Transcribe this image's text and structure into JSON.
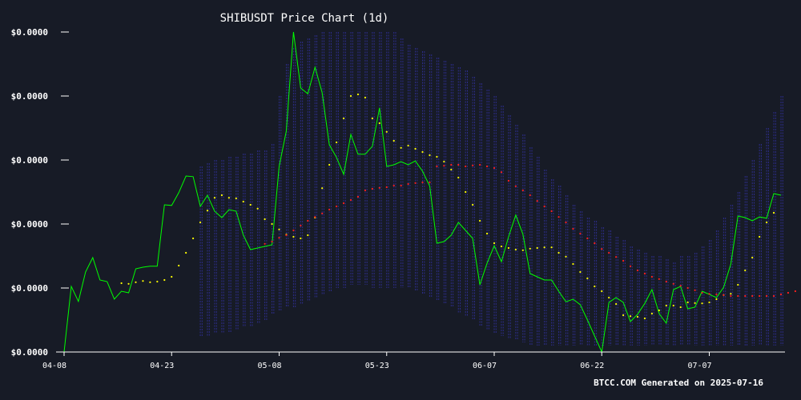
{
  "chart_data": {
    "type": "line",
    "title": "SHIBUSDT Price Chart (1d)",
    "xlabel": "",
    "ylabel": "",
    "x_tick_labels": [
      "04-08",
      "04-23",
      "05-08",
      "05-23",
      "06-07",
      "06-22",
      "07-07"
    ],
    "x_tick_index": [
      0,
      15,
      30,
      45,
      60,
      75,
      90
    ],
    "y_tick_labels": [
      "$0.0000",
      "$0.0000",
      "$0.0000",
      "$0.0000",
      "$0.0000",
      "$0.0000"
    ],
    "ylim": [
      0,
      1
    ],
    "grid": false,
    "legend": "none",
    "series": [
      {
        "kind": "line",
        "color": "#00ff00",
        "values": [
          0.0,
          0.205,
          0.158,
          0.25,
          0.295,
          0.225,
          0.22,
          0.165,
          0.19,
          0.185,
          0.26,
          0.265,
          0.268,
          0.268,
          0.46,
          0.458,
          0.498,
          0.55,
          0.548,
          0.455,
          0.49,
          0.44,
          0.42,
          0.445,
          0.44,
          0.365,
          0.32,
          0.325,
          0.33,
          0.335,
          0.58,
          0.69,
          1.0,
          0.825,
          0.807,
          0.89,
          0.81,
          0.648,
          0.608,
          0.555,
          0.68,
          0.618,
          0.618,
          0.643,
          0.763,
          0.58,
          0.585,
          0.595,
          0.585,
          0.597,
          0.565,
          0.518,
          0.34,
          0.345,
          0.365,
          0.405,
          0.38,
          0.355,
          0.21,
          0.277,
          0.332,
          0.282,
          0.36,
          0.428,
          0.368,
          0.245,
          0.235,
          0.225,
          0.225,
          0.19,
          0.157,
          0.165,
          0.148,
          0.1,
          0.05,
          0.0,
          0.155,
          0.17,
          0.155,
          0.095,
          0.118,
          0.152,
          0.195,
          0.12,
          0.09,
          0.195,
          0.205,
          0.135,
          0.14,
          0.19,
          0.18,
          0.17,
          0.202,
          0.275,
          0.425,
          0.42,
          0.41,
          0.422,
          0.418,
          0.495,
          0.49
        ]
      },
      {
        "kind": "dotted",
        "color": "#ffff00",
        "start_index": 8,
        "values": [
          0.215,
          0.213,
          0.218,
          0.222,
          0.218,
          0.22,
          0.225,
          0.235,
          0.27,
          0.31,
          0.355,
          0.405,
          0.442,
          0.482,
          0.49,
          0.482,
          0.48,
          0.47,
          0.46,
          0.448,
          0.415,
          0.4,
          0.383,
          0.367,
          0.36,
          0.355,
          0.365,
          0.42,
          0.512,
          0.585,
          0.655,
          0.73,
          0.8,
          0.805,
          0.795,
          0.73,
          0.715,
          0.688,
          0.66,
          0.638,
          0.645,
          0.635,
          0.625,
          0.615,
          0.61,
          0.595,
          0.57,
          0.545,
          0.5,
          0.46,
          0.41,
          0.37,
          0.34,
          0.33,
          0.325,
          0.32,
          0.318,
          0.323,
          0.325,
          0.327,
          0.327,
          0.31,
          0.298,
          0.275,
          0.25,
          0.23,
          0.205,
          0.19,
          0.17,
          0.15,
          0.115,
          0.112,
          0.11,
          0.105,
          0.12,
          0.13,
          0.145,
          0.145,
          0.14,
          0.155,
          0.153,
          0.152,
          0.155,
          0.165,
          0.178,
          0.182,
          0.21,
          0.255,
          0.295,
          0.36,
          0.405,
          0.435
        ]
      },
      {
        "kind": "dotted",
        "color": "#ff2020",
        "start_index": 28,
        "values": [
          0.338,
          0.345,
          0.357,
          0.365,
          0.38,
          0.395,
          0.41,
          0.422,
          0.433,
          0.445,
          0.455,
          0.465,
          0.475,
          0.485,
          0.505,
          0.51,
          0.513,
          0.515,
          0.52,
          0.52,
          0.525,
          0.528,
          0.53,
          0.53,
          0.58,
          0.582,
          0.585,
          0.585,
          0.58,
          0.583,
          0.585,
          0.58,
          0.575,
          0.562,
          0.535,
          0.518,
          0.505,
          0.49,
          0.472,
          0.455,
          0.44,
          0.422,
          0.405,
          0.385,
          0.37,
          0.355,
          0.34,
          0.322,
          0.31,
          0.297,
          0.285,
          0.268,
          0.255,
          0.245,
          0.235,
          0.228,
          0.22,
          0.213,
          0.207,
          0.2,
          0.193,
          0.185,
          0.182,
          0.18,
          0.178,
          0.175,
          0.175,
          0.175,
          0.175,
          0.175,
          0.175,
          0.175,
          0.18,
          0.185,
          0.19,
          0.2,
          0.215
        ]
      },
      {
        "kind": "band",
        "color": "#2d2d8a",
        "start_index": 19,
        "upper": [
          0.58,
          0.59,
          0.6,
          0.6,
          0.61,
          0.61,
          0.62,
          0.62,
          0.63,
          0.63,
          0.65,
          0.8,
          0.9,
          0.95,
          0.97,
          0.98,
          0.99,
          1.0,
          1.0,
          1.0,
          1.0,
          1.0,
          1.0,
          1.0,
          1.0,
          1.0,
          1.0,
          1.0,
          0.98,
          0.96,
          0.95,
          0.94,
          0.93,
          0.92,
          0.91,
          0.9,
          0.89,
          0.88,
          0.86,
          0.84,
          0.82,
          0.8,
          0.77,
          0.74,
          0.71,
          0.68,
          0.64,
          0.61,
          0.57,
          0.54,
          0.52,
          0.49,
          0.46,
          0.44,
          0.42,
          0.41,
          0.39,
          0.38,
          0.36,
          0.35,
          0.33,
          0.32,
          0.31,
          0.3,
          0.3,
          0.29,
          0.28,
          0.3,
          0.3,
          0.31,
          0.33,
          0.35,
          0.38,
          0.42,
          0.46,
          0.5,
          0.55,
          0.6,
          0.65,
          0.7,
          0.75,
          0.8
        ],
        "lower": [
          0.05,
          0.05,
          0.06,
          0.06,
          0.06,
          0.07,
          0.08,
          0.08,
          0.09,
          0.1,
          0.12,
          0.13,
          0.14,
          0.14,
          0.15,
          0.16,
          0.17,
          0.18,
          0.19,
          0.2,
          0.2,
          0.21,
          0.21,
          0.21,
          0.2,
          0.2,
          0.2,
          0.2,
          0.2,
          0.2,
          0.19,
          0.18,
          0.17,
          0.16,
          0.15,
          0.14,
          0.12,
          0.11,
          0.1,
          0.08,
          0.07,
          0.06,
          0.05,
          0.04,
          0.04,
          0.03,
          0.02,
          0.02,
          0.02,
          0.02,
          0.02,
          0.02,
          0.02,
          0.02,
          0.02,
          0.02,
          0.02,
          0.02,
          0.02,
          0.02,
          0.02,
          0.02,
          0.02,
          0.02,
          0.02,
          0.02,
          0.02,
          0.02,
          0.02,
          0.02,
          0.02,
          0.02,
          0.02,
          0.02,
          0.02,
          0.02,
          0.02,
          0.02,
          0.02,
          0.02,
          0.02,
          0.02
        ]
      }
    ]
  },
  "footer": "BTCC.COM Generated on 2025-07-16",
  "colors": {
    "background": "#171b26",
    "axis": "#ffffff",
    "text": "#ffffff"
  }
}
